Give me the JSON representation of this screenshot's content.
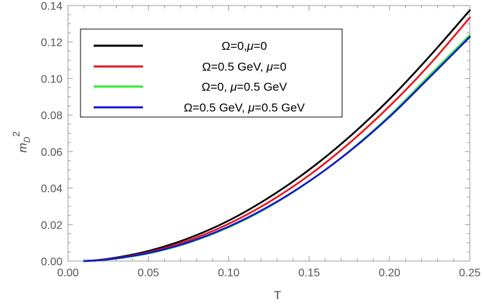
{
  "chart_data": {
    "type": "line",
    "xlabel": "T",
    "ylabel": "m_D^2",
    "ylabel_main": "m",
    "ylabel_sub": "D",
    "ylabel_sup": "2",
    "xlim": [
      0.0,
      0.25
    ],
    "ylim": [
      0.0,
      0.14
    ],
    "x_ticks": [
      "0.00",
      "0.05",
      "0.10",
      "0.15",
      "0.20",
      "0.25"
    ],
    "y_ticks": [
      "0.00",
      "0.02",
      "0.04",
      "0.06",
      "0.08",
      "0.10",
      "0.12",
      "0.14"
    ],
    "grid": false,
    "legend_position": "top-left",
    "x": [
      0.01,
      0.025,
      0.05,
      0.075,
      0.1,
      0.125,
      0.15,
      0.175,
      0.2,
      0.225,
      0.25
    ],
    "series": [
      {
        "name": "Ω=0,μ=0",
        "legend_parts": [
          [
            "Ω=0,",
            false
          ],
          [
            "μ",
            true
          ],
          [
            "=0",
            false
          ]
        ],
        "color": "#000000",
        "values": [
          0.0,
          0.0012,
          0.0055,
          0.0125,
          0.0222,
          0.0348,
          0.05,
          0.068,
          0.0887,
          0.1122,
          0.1374
        ]
      },
      {
        "name": "Ω=0.5 GeV, μ=0",
        "legend_parts": [
          [
            "Ω=0.5 GeV, ",
            false
          ],
          [
            "μ",
            true
          ],
          [
            "=0",
            false
          ]
        ],
        "color": "#e8151b",
        "values": [
          0.0,
          0.001,
          0.0048,
          0.0113,
          0.0204,
          0.0323,
          0.047,
          0.0646,
          0.0848,
          0.1077,
          0.1334
        ]
      },
      {
        "name": "Ω=0, μ=0.5 GeV",
        "legend_parts": [
          [
            "Ω=0, ",
            false
          ],
          [
            "μ",
            true
          ],
          [
            "=0.5 GeV",
            false
          ]
        ],
        "color": "#2ee82e",
        "values": [
          0.0,
          0.0008,
          0.0042,
          0.01,
          0.0185,
          0.0297,
          0.0436,
          0.0602,
          0.0796,
          0.1018,
          0.1238
        ]
      },
      {
        "name": "Ω=0.5 GeV, μ=0.5 GeV",
        "legend_parts": [
          [
            "Ω=0.5 GeV, ",
            false
          ],
          [
            "μ",
            true
          ],
          [
            "=0.5 GeV",
            false
          ]
        ],
        "color": "#1414d6",
        "values": [
          0.0,
          0.0009,
          0.0044,
          0.0103,
          0.0189,
          0.03,
          0.0437,
          0.06,
          0.079,
          0.1007,
          0.1228
        ]
      }
    ]
  }
}
